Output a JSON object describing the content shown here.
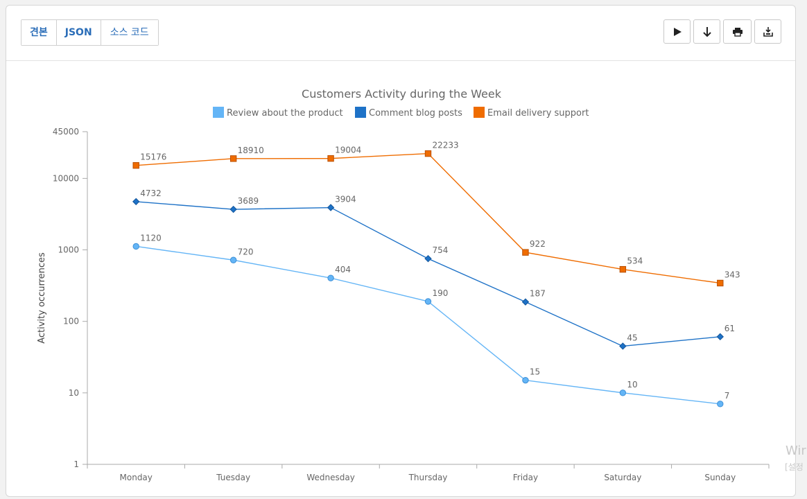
{
  "tabs": [
    {
      "label": "견본"
    },
    {
      "label": "JSON"
    },
    {
      "label": "소스 코드"
    }
  ],
  "tools": [
    {
      "icon": "play-icon"
    },
    {
      "icon": "download-arrow-icon"
    },
    {
      "icon": "print-icon"
    },
    {
      "icon": "export-icon"
    }
  ],
  "colors": {
    "review": "#64b5f6",
    "comment": "#1e72c7",
    "email": "#ef6c00",
    "accent": "#2a6db8"
  },
  "chart_data": {
    "type": "line",
    "title": "Customers Activity during the Week",
    "xlabel": "",
    "ylabel": "Activity occurrences",
    "yscale": "log",
    "ylim": [
      1,
      45000
    ],
    "yticks": [
      "1",
      "10",
      "100",
      "1000",
      "10000",
      "45000"
    ],
    "ytick_values": [
      1,
      10,
      100,
      1000,
      10000,
      45000
    ],
    "categories": [
      "Monday",
      "Tuesday",
      "Wednesday",
      "Thursday",
      "Friday",
      "Saturday",
      "Sunday"
    ],
    "legend_position": "top",
    "grid": false,
    "series": [
      {
        "name": "Review about the product",
        "marker": "circle",
        "color": "#64b5f6",
        "values": [
          1120,
          720,
          404,
          190,
          15,
          10,
          7
        ]
      },
      {
        "name": "Comment blog posts",
        "marker": "diamond",
        "color": "#1e72c7",
        "values": [
          4732,
          3689,
          3904,
          754,
          187,
          45,
          61
        ]
      },
      {
        "name": "Email delivery support",
        "marker": "square",
        "color": "#ef6c00",
        "values": [
          15176,
          18910,
          19004,
          22233,
          922,
          534,
          343
        ]
      }
    ]
  },
  "watermark": {
    "line1": "Wir",
    "line2": "[설정"
  }
}
